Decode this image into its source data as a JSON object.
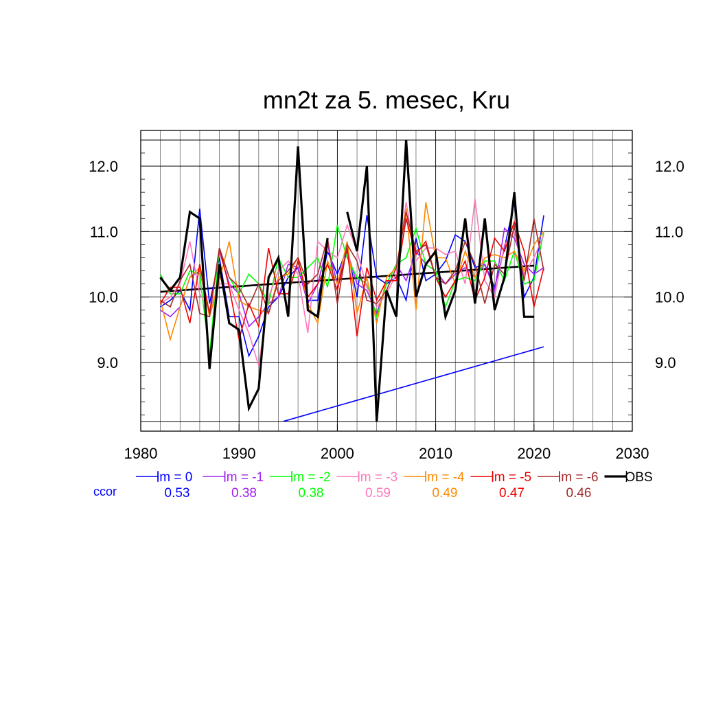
{
  "chart_data": {
    "type": "line",
    "title": "mn2t za 5. mesec, Kru",
    "xlabel": "",
    "ylabel": "",
    "xlim": [
      1980,
      2030
    ],
    "ylim": [
      8.1,
      12.4
    ],
    "xticks": [
      1980,
      1990,
      2000,
      2010,
      2020,
      2030
    ],
    "yticks": [
      9.0,
      10.0,
      11.0,
      12.0
    ],
    "xtick_labels": [
      "1980",
      "1990",
      "2000",
      "2010",
      "2020",
      "2030"
    ],
    "ytick_labels": [
      "9.0",
      "10.0",
      "11.0",
      "12.0"
    ],
    "grid": true,
    "legend_position": "bottom",
    "ccor_label": "ccor",
    "x": [
      1982,
      1983,
      1984,
      1985,
      1986,
      1987,
      1988,
      1989,
      1990,
      1991,
      1992,
      1993,
      1994,
      1995,
      1996,
      1997,
      1998,
      1999,
      2000,
      2001,
      2002,
      2003,
      2004,
      2005,
      2006,
      2007,
      2008,
      2009,
      2010,
      2011,
      2012,
      2013,
      2014,
      2015,
      2016,
      2017,
      2018,
      2019,
      2020,
      2021
    ],
    "series": [
      {
        "name": "lm = 0",
        "ccor": "0.53",
        "color": "#0000ff",
        "width": 1.6,
        "values": [
          9.85,
          9.95,
          10.1,
          9.8,
          11.35,
          9.9,
          10.6,
          9.7,
          9.7,
          9.1,
          9.4,
          9.85,
          10.0,
          10.3,
          10.45,
          9.95,
          9.95,
          10.7,
          10.35,
          10.75,
          10.0,
          11.25,
          10.3,
          10.2,
          10.3,
          9.95,
          10.9,
          10.25,
          10.35,
          10.55,
          10.95,
          10.85,
          10.45,
          10.5,
          10.15,
          10.75,
          11.45,
          10.0,
          10.3,
          11.25
        ]
      },
      {
        "name": "lm = -1",
        "ccor": "0.38",
        "color": "#a020f0",
        "width": 1.6,
        "values": [
          9.8,
          9.7,
          9.85,
          10.3,
          10.4,
          9.75,
          10.7,
          10.2,
          10.05,
          9.55,
          9.7,
          9.9,
          10.0,
          10.5,
          10.45,
          9.9,
          10.2,
          10.8,
          10.2,
          10.7,
          10.2,
          10.1,
          9.75,
          10.2,
          10.5,
          10.25,
          10.7,
          10.5,
          10.4,
          10.2,
          10.35,
          10.45,
          10.3,
          10.5,
          10.1,
          11.05,
          10.9,
          10.5,
          10.35,
          10.45
        ]
      },
      {
        "name": "lm = -2",
        "ccor": "0.38",
        "color": "#00ff00",
        "width": 1.6,
        "values": [
          10.35,
          10.05,
          10.05,
          10.4,
          10.35,
          9.1,
          10.75,
          10.3,
          10.05,
          10.35,
          10.2,
          9.9,
          10.6,
          10.3,
          10.3,
          10.45,
          10.6,
          10.15,
          11.1,
          10.6,
          10.3,
          10.2,
          9.7,
          10.2,
          10.5,
          10.6,
          11.05,
          10.5,
          10.4,
          9.85,
          10.25,
          10.3,
          10.25,
          10.55,
          10.55,
          10.25,
          10.7,
          10.2,
          10.25,
          11.0
        ]
      },
      {
        "name": "lm = -3",
        "ccor": "0.59",
        "color": "#ff77bb",
        "width": 1.6,
        "values": [
          9.9,
          10.0,
          10.2,
          10.85,
          10.05,
          9.8,
          10.2,
          10.2,
          9.8,
          9.45,
          8.95,
          10.0,
          10.4,
          10.55,
          10.35,
          9.45,
          10.85,
          10.7,
          10.6,
          11.1,
          10.7,
          10.15,
          9.85,
          10.05,
          10.35,
          11.45,
          10.55,
          10.75,
          10.75,
          10.65,
          10.7,
          10.2,
          11.5,
          10.25,
          10.0,
          10.8,
          11.0,
          10.35,
          10.6,
          10.95
        ]
      },
      {
        "name": "lm = -4",
        "ccor": "0.49",
        "color": "#ff8800",
        "width": 1.6,
        "values": [
          9.95,
          9.35,
          9.85,
          10.3,
          10.45,
          9.7,
          10.25,
          10.85,
          9.95,
          9.85,
          9.8,
          9.75,
          10.3,
          10.35,
          10.6,
          9.9,
          9.6,
          10.55,
          10.2,
          10.85,
          9.75,
          10.3,
          9.6,
          10.3,
          10.45,
          11.35,
          9.8,
          11.45,
          10.6,
          10.6,
          10.2,
          10.7,
          10.3,
          10.6,
          10.65,
          10.6,
          10.7,
          10.4,
          10.8,
          11.0
        ]
      },
      {
        "name": "lm = -5",
        "ccor": "0.47",
        "color": "#ee0000",
        "width": 1.6,
        "values": [
          9.9,
          10.15,
          10.15,
          9.6,
          10.5,
          9.75,
          10.75,
          10.15,
          9.35,
          9.9,
          9.55,
          10.75,
          10.05,
          10.05,
          10.55,
          10.0,
          10.2,
          10.5,
          10.1,
          10.75,
          9.4,
          10.45,
          9.95,
          10.25,
          10.25,
          11.2,
          10.65,
          10.85,
          10.3,
          10.0,
          10.25,
          10.55,
          9.95,
          10.3,
          10.9,
          10.7,
          11.15,
          10.7,
          9.85,
          10.45
        ]
      },
      {
        "name": "lm = -6",
        "ccor": "0.46",
        "color": "#a52a2a",
        "width": 1.6,
        "values": [
          9.95,
          9.85,
          10.25,
          10.5,
          9.75,
          9.7,
          10.75,
          10.3,
          10.15,
          9.85,
          10.2,
          9.75,
          10.25,
          10.4,
          10.6,
          10.2,
          10.35,
          10.9,
          9.9,
          10.8,
          10.55,
          9.95,
          9.9,
          10.1,
          10.45,
          11.3,
          10.7,
          10.8,
          10.3,
          10.2,
          10.4,
          10.85,
          10.5,
          9.9,
          10.5,
          10.35,
          11.1,
          10.25,
          11.2,
          10.4
        ]
      },
      {
        "name": "OBS",
        "ccor": "",
        "color": "#000000",
        "width": 3.2,
        "values": [
          10.3,
          10.1,
          10.3,
          11.3,
          11.2,
          8.9,
          10.5,
          9.6,
          9.5,
          8.3,
          8.6,
          10.3,
          10.6,
          9.7,
          12.3,
          9.8,
          9.7,
          10.9,
          null,
          11.3,
          10.7,
          12.0,
          8.1,
          10.1,
          9.7,
          12.4,
          10.0,
          10.5,
          10.7,
          9.7,
          10.1,
          11.2,
          9.9,
          11.2,
          9.8,
          10.3,
          11.6,
          9.7,
          9.7,
          null
        ]
      }
    ],
    "trend_lines": [
      {
        "name": "OBS trend",
        "color": "#000000",
        "width": 2.6,
        "x": [
          1982,
          2020
        ],
        "y": [
          10.08,
          10.48
        ]
      },
      {
        "name": "model trend",
        "color": "#0000ff",
        "width": 1.6,
        "x": [
          1994.5,
          2021
        ],
        "y": [
          8.1,
          9.24
        ]
      }
    ]
  }
}
